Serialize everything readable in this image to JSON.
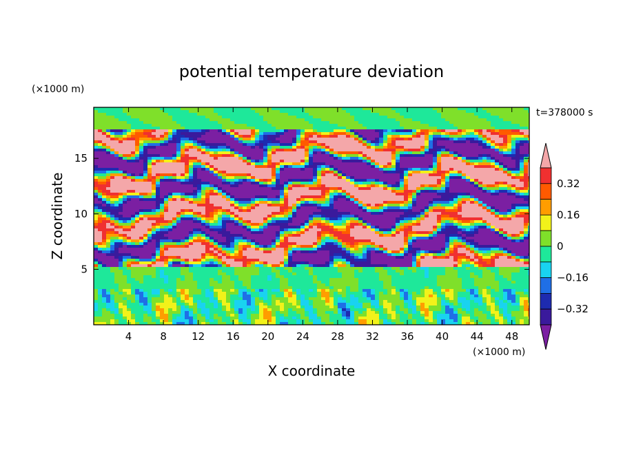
{
  "chart_data": {
    "type": "heatmap",
    "title": "potential temperature deviation",
    "xlabel": "X coordinate",
    "ylabel": "Z coordinate",
    "x_unit": "(×1000 m)",
    "y_unit": "(×1000 m)",
    "time_label": "t=378000 s",
    "xlim": [
      0,
      50
    ],
    "ylim": [
      0,
      19.6
    ],
    "x_ticks": [
      4,
      8,
      12,
      16,
      20,
      24,
      28,
      32,
      36,
      40,
      44,
      48
    ],
    "y_ticks": [
      5,
      10,
      15
    ],
    "colorbar": {
      "levels": [
        -0.4,
        -0.32,
        -0.24,
        -0.16,
        -0.08,
        0,
        0.08,
        0.16,
        0.24,
        0.32,
        0.4
      ],
      "labels": [
        "0.32",
        "0.16",
        "0",
        "−0.16",
        "−0.32"
      ],
      "label_values": [
        0.32,
        0.16,
        0,
        -0.16,
        -0.32
      ],
      "colors": [
        "#7b1fa2",
        "#3a1a9c",
        "#1e2bb0",
        "#1f6fe6",
        "#19d3f0",
        "#1ee89a",
        "#7fe02a",
        "#f2f21a",
        "#ff9d00",
        "#ff5a00",
        "#f03030",
        "#f4a7a9"
      ],
      "extend": "both"
    },
    "layers": [
      {
        "from": 0,
        "to": 5.2,
        "description_free": true,
        "base": "mixed"
      },
      {
        "from": 5.2,
        "to": 17.5,
        "pattern": "stratified bands"
      },
      {
        "from": 17.5,
        "to": 19.6,
        "pattern": "near zero"
      }
    ]
  }
}
